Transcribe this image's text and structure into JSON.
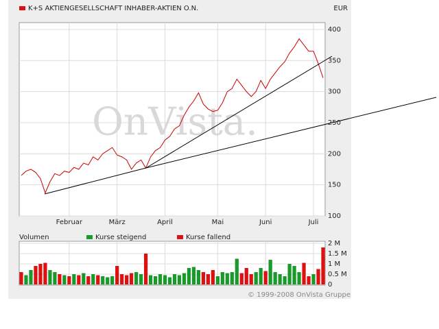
{
  "chart_data": [
    {
      "type": "line",
      "title": "K+S AKTIENGESELLSCHAFT INHABER-AKTIEN O.N.",
      "unit": "EUR",
      "color": "#cc0000",
      "categories": [
        null,
        null,
        null,
        null,
        null,
        null,
        null,
        null,
        null,
        null,
        "Februar",
        null,
        null,
        null,
        null,
        null,
        null,
        null,
        null,
        null,
        "März",
        null,
        null,
        null,
        null,
        null,
        null,
        null,
        null,
        null,
        "April",
        null,
        null,
        null,
        null,
        null,
        null,
        null,
        null,
        null,
        null,
        "Mai",
        null,
        null,
        null,
        null,
        null,
        null,
        null,
        null,
        null,
        "Juni",
        null,
        null,
        null,
        null,
        null,
        null,
        null,
        null,
        null,
        "Juli",
        null,
        null
      ],
      "values": [
        165,
        172,
        175,
        170,
        160,
        137,
        155,
        168,
        165,
        172,
        170,
        178,
        175,
        185,
        182,
        195,
        190,
        200,
        205,
        210,
        198,
        195,
        190,
        175,
        185,
        190,
        177,
        195,
        205,
        210,
        222,
        228,
        240,
        245,
        262,
        275,
        285,
        298,
        280,
        272,
        268,
        270,
        282,
        300,
        305,
        320,
        310,
        300,
        292,
        300,
        318,
        305,
        320,
        330,
        340,
        348,
        362,
        372,
        385,
        375,
        365,
        365,
        345,
        322
      ],
      "ylim": [
        100,
        411
      ],
      "yticks": [
        100,
        150,
        200,
        250,
        300,
        350,
        400
      ],
      "grid": true
    },
    {
      "type": "bar",
      "title": "Volumen",
      "series": [
        {
          "name": "Kurse steigend",
          "color": "#1a9a2a",
          "values": [
            null,
            0.45,
            0.7,
            null,
            null,
            null,
            0.7,
            0.6,
            null,
            0.45,
            null,
            0.5,
            null,
            0.55,
            null,
            0.5,
            null,
            0.4,
            0.35,
            0.4,
            null,
            null,
            null,
            null,
            0.6,
            0.5,
            null,
            0.45,
            0.4,
            0.5,
            0.45,
            0.35,
            0.5,
            0.45,
            0.55,
            0.8,
            0.85,
            0.7,
            null,
            null,
            null,
            0.4,
            0.6,
            0.55,
            0.6,
            1.25,
            null,
            null,
            null,
            0.6,
            0.8,
            null,
            1.2,
            0.6,
            0.5,
            0.4,
            1.0,
            0.9,
            0.6,
            null,
            null,
            0.5,
            null,
            null
          ]
        },
        {
          "name": "Kurse fallend",
          "color": "#dd1111",
          "values": [
            0.6,
            null,
            null,
            0.9,
            1.0,
            1.05,
            null,
            null,
            0.5,
            null,
            0.4,
            null,
            0.45,
            null,
            0.4,
            null,
            0.45,
            null,
            null,
            null,
            0.9,
            0.5,
            0.45,
            0.55,
            null,
            null,
            1.5,
            null,
            null,
            null,
            null,
            null,
            null,
            null,
            null,
            null,
            null,
            null,
            0.6,
            0.5,
            0.7,
            null,
            null,
            null,
            null,
            null,
            0.55,
            0.8,
            0.5,
            null,
            null,
            0.65,
            null,
            null,
            null,
            null,
            null,
            null,
            null,
            1.05,
            0.4,
            null,
            0.75,
            1.8
          ]
        }
      ],
      "ylim": [
        0,
        2.1
      ],
      "yticks": [
        0,
        {
          "value": 0.5,
          "label": "0.5 M"
        },
        {
          "value": 1,
          "label": "1 M"
        },
        {
          "value": 1.5,
          "label": "1.5 M"
        },
        {
          "value": 2,
          "label": "2 M"
        }
      ],
      "grid": true
    }
  ],
  "watermark": "OnVista.",
  "copyright": "© 1999-2008 OnVista Gruppe"
}
